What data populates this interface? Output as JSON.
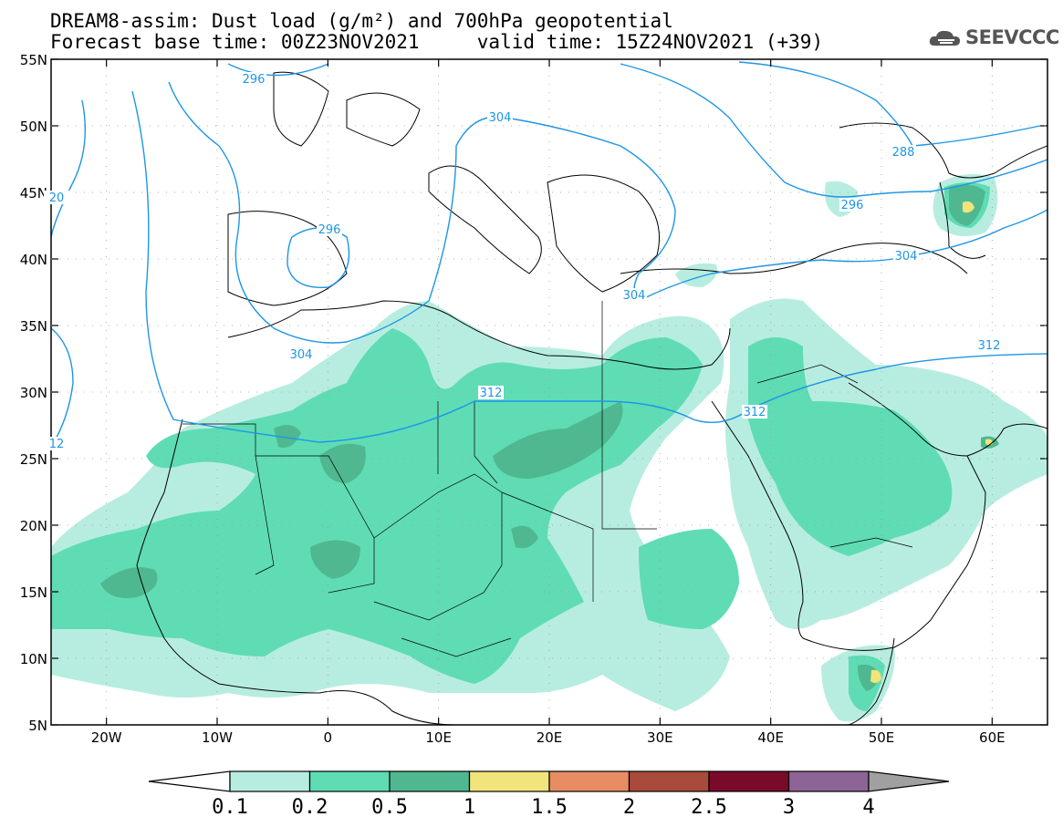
{
  "title": {
    "line1": "DREAM8-assim: Dust load (g/m²) and 700hPa geopotential",
    "line2": "Forecast base time: 00Z23NOV2021     valid time: 15Z24NOV2021 (+39)"
  },
  "logo": {
    "text": "SEEVCCC",
    "icon": "cloud-icon"
  },
  "map": {
    "lon_range": [
      -25,
      65
    ],
    "lat_range": [
      5,
      55
    ],
    "lat_ticks": [
      "5N",
      "10N",
      "15N",
      "20N",
      "25N",
      "30N",
      "35N",
      "40N",
      "45N",
      "50N",
      "55N"
    ],
    "lon_ticks": [
      "20W",
      "10W",
      "0",
      "10E",
      "20E",
      "30E",
      "40E",
      "50E",
      "60E"
    ],
    "contour_labels": [
      "296",
      "304",
      "304",
      "288",
      "296",
      "296",
      "304",
      "304",
      "312",
      "312",
      "312",
      "20",
      "12"
    ],
    "contour_color": "#1e96e6"
  },
  "colorbar": {
    "labels": [
      "0.1",
      "0.2",
      "0.5",
      "1",
      "1.5",
      "2",
      "2.5",
      "3",
      "4"
    ],
    "colors": [
      "#b7ede0",
      "#5fdcb4",
      "#4fb890",
      "#f0e47a",
      "#e88c64",
      "#a84a3c",
      "#7a0a2a",
      "#8c6496"
    ],
    "overflow_color": "#a0a0a0"
  }
}
